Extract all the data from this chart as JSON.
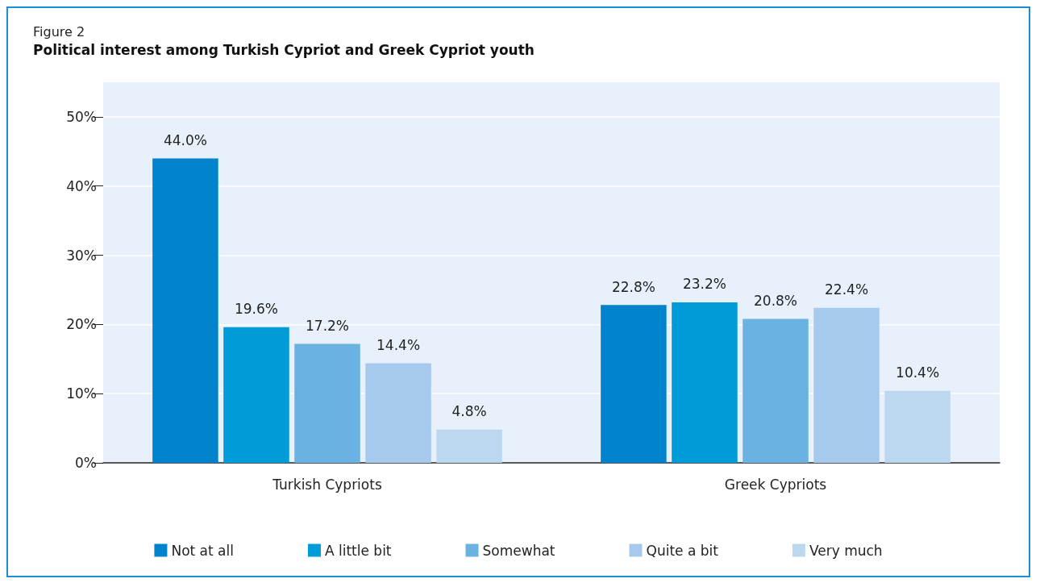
{
  "chart_data": {
    "type": "bar",
    "subtitle": "Figure 2",
    "title": "Political interest among Turkish Cypriot and Greek Cypriot youth",
    "categories": [
      "Turkish Cypriots",
      "Greek Cypriots"
    ],
    "series": [
      {
        "name": "Not at all",
        "color": "#0083cc",
        "values": [
          44.0,
          22.8
        ],
        "value_labels": [
          "44.0%",
          "22.8%"
        ]
      },
      {
        "name": "A little bit",
        "color": "#009cd9",
        "values": [
          19.6,
          23.2
        ],
        "value_labels": [
          "19.6%",
          "23.2%"
        ]
      },
      {
        "name": "Somewhat",
        "color": "#69b2e2",
        "values": [
          17.2,
          20.8
        ],
        "value_labels": [
          "17.2%",
          "20.8%"
        ]
      },
      {
        "name": "Quite a bit",
        "color": "#a6caed",
        "values": [
          14.4,
          22.4
        ],
        "value_labels": [
          "14.4%",
          "22.4%"
        ]
      },
      {
        "name": "Very much",
        "color": "#bcd8f1",
        "values": [
          4.8,
          10.4
        ],
        "value_labels": [
          "4.8%",
          "10.4%"
        ]
      }
    ],
    "ylim": [
      0,
      55
    ],
    "yticks": [
      {
        "value": 0,
        "label": "0%"
      },
      {
        "value": 10,
        "label": "10%"
      },
      {
        "value": 20,
        "label": "20%"
      },
      {
        "value": 30,
        "label": "30%"
      },
      {
        "value": 40,
        "label": "40%"
      },
      {
        "value": 50,
        "label": "50%"
      }
    ],
    "grid": "y",
    "legend": "bottom"
  }
}
